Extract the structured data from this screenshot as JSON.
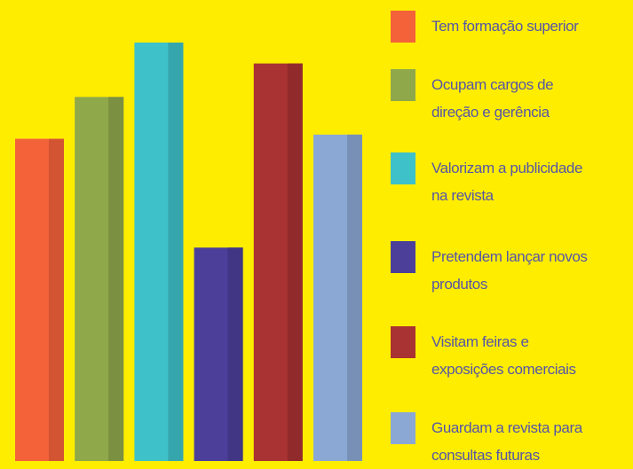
{
  "chart_data": {
    "type": "bar",
    "series": [
      {
        "name": "Tem formação superior",
        "color": "#f4623a",
        "values": [
          77
        ]
      },
      {
        "name": "Ocupam cargos de\ndireção e gerência",
        "color": "#8fa84a",
        "values": [
          87
        ]
      },
      {
        "name": "Valorizam a publicidade\nna revista",
        "color": "#3fc1c9",
        "values": [
          100
        ]
      },
      {
        "name": "Pretendem lançar novos\nprodutos",
        "color": "#4b3f9a",
        "values": [
          51
        ]
      },
      {
        "name": "Visitam feiras e\nexposições comerciais",
        "color": "#a93232",
        "values": [
          95
        ]
      },
      {
        "name": "Guardam a revista para\nconsultas futuras",
        "color": "#8ba8d4",
        "values": [
          78
        ]
      }
    ]
  }
}
